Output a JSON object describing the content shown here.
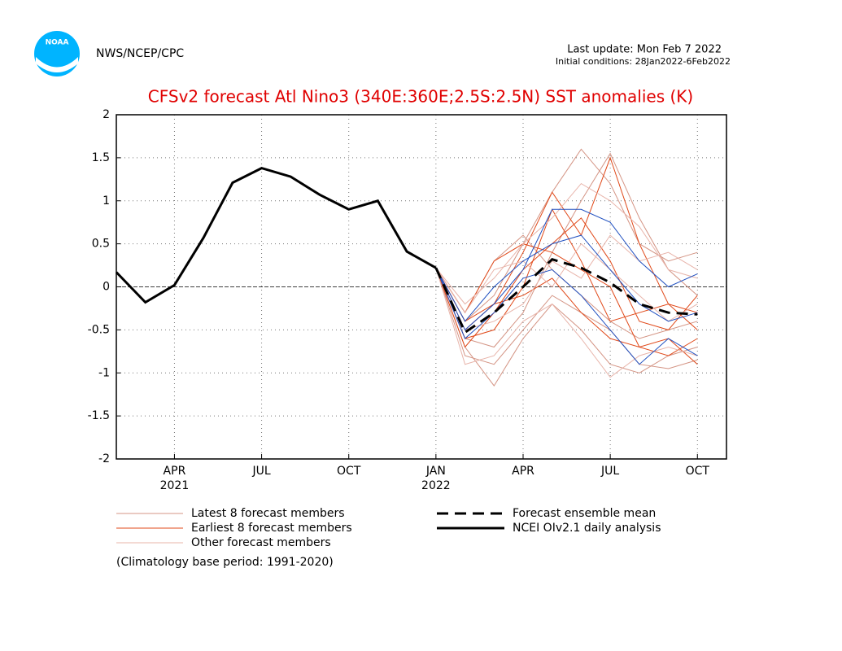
{
  "header": {
    "org": "NWS/NCEP/CPC",
    "logo_text": "NOAA",
    "last_update": "Last update: Mon Feb 7 2022",
    "initial_conditions": "Initial conditions: 28Jan2022-6Feb2022"
  },
  "chart_data": {
    "type": "line",
    "title": "CFSv2 forecast Atl Nino3 (340E:360E;2.5S:2.5N) SST anomalies (K)",
    "categories": [
      null,
      null,
      "APR 2021",
      null,
      null,
      "JUL",
      null,
      null,
      "OCT",
      null,
      null,
      "JAN 2022",
      null,
      null,
      "APR",
      null,
      null,
      "JUL",
      null,
      null,
      "OCT"
    ],
    "ylim": [
      -2,
      2
    ],
    "yticks": [
      -2,
      -1.5,
      -1,
      -0.5,
      0,
      0.5,
      1,
      1.5,
      2
    ],
    "grid": true,
    "member_groups": [
      {
        "name": "Latest 8 forecast members",
        "color": "#d49484",
        "members": [
          [
            null,
            null,
            null,
            null,
            null,
            null,
            null,
            null,
            null,
            null,
            null,
            0.22,
            -0.6,
            -0.7,
            -0.3,
            0.4,
            1.0,
            1.55,
            0.8,
            0.2,
            -0.1
          ],
          [
            null,
            null,
            null,
            null,
            null,
            null,
            null,
            null,
            null,
            null,
            null,
            0.22,
            -0.4,
            -0.1,
            0.5,
            1.1,
            1.6,
            1.2,
            0.5,
            0.3,
            0.4
          ],
          [
            null,
            null,
            null,
            null,
            null,
            null,
            null,
            null,
            null,
            null,
            null,
            0.22,
            -0.7,
            -1.15,
            -0.6,
            -0.2,
            -0.5,
            -0.9,
            -1.0,
            -0.8,
            -0.7
          ],
          [
            null,
            null,
            null,
            null,
            null,
            null,
            null,
            null,
            null,
            null,
            null,
            0.22,
            -0.3,
            0.3,
            0.6,
            0.2,
            -0.1,
            -0.4,
            -0.6,
            -0.5,
            -0.4
          ],
          [
            null,
            null,
            null,
            null,
            null,
            null,
            null,
            null,
            null,
            null,
            null,
            0.22,
            -0.8,
            -0.9,
            -0.5,
            -0.1,
            -0.3,
            -0.5,
            -0.9,
            -0.95,
            -0.85
          ]
        ]
      },
      {
        "name": "Earliest 8 forecast members",
        "color": "#e04818",
        "members": [
          [
            null,
            null,
            null,
            null,
            null,
            null,
            null,
            null,
            null,
            null,
            null,
            0.22,
            -0.5,
            -0.2,
            0.4,
            1.1,
            0.6,
            1.5,
            0.5,
            -0.2,
            -0.5
          ],
          [
            null,
            null,
            null,
            null,
            null,
            null,
            null,
            null,
            null,
            null,
            null,
            0.22,
            -0.3,
            0.3,
            0.5,
            0.4,
            0.2,
            0.0,
            -0.7,
            -0.8,
            -0.6
          ],
          [
            null,
            null,
            null,
            null,
            null,
            null,
            null,
            null,
            null,
            null,
            null,
            0.22,
            -0.6,
            -0.5,
            0.0,
            0.9,
            0.3,
            -0.4,
            -0.3,
            -0.2,
            -0.3
          ],
          [
            null,
            null,
            null,
            null,
            null,
            null,
            null,
            null,
            null,
            null,
            null,
            0.22,
            -0.4,
            -0.2,
            -0.1,
            0.1,
            -0.3,
            -0.6,
            -0.7,
            -0.6,
            -0.9
          ],
          [
            null,
            null,
            null,
            null,
            null,
            null,
            null,
            null,
            null,
            null,
            null,
            0.22,
            -0.7,
            -0.3,
            0.2,
            0.5,
            0.8,
            0.3,
            -0.4,
            -0.5,
            -0.1
          ]
        ]
      },
      {
        "name": "Other forecast members",
        "color": "#e8b4aa",
        "members": [
          [
            null,
            null,
            null,
            null,
            null,
            null,
            null,
            null,
            null,
            null,
            null,
            0.22,
            -0.2,
            0.1,
            0.5,
            0.8,
            1.2,
            1.0,
            0.7,
            0.2,
            0.1
          ],
          [
            null,
            null,
            null,
            null,
            null,
            null,
            null,
            null,
            null,
            null,
            null,
            0.22,
            -0.9,
            -0.8,
            -0.4,
            -0.2,
            -0.6,
            -1.05,
            -0.8,
            -0.7,
            -0.8
          ],
          [
            null,
            null,
            null,
            null,
            null,
            null,
            null,
            null,
            null,
            null,
            null,
            0.22,
            -0.5,
            -0.4,
            -0.2,
            0.3,
            0.1,
            0.6,
            0.3,
            0.4,
            0.2
          ],
          [
            null,
            null,
            null,
            null,
            null,
            null,
            null,
            null,
            null,
            null,
            null,
            0.22,
            -0.3,
            0.2,
            0.3,
            0.0,
            0.5,
            0.2,
            -0.1,
            -0.4,
            -0.2
          ]
        ]
      },
      {
        "color": "#2050c0",
        "members": [
          [
            null,
            null,
            null,
            null,
            null,
            null,
            null,
            null,
            null,
            null,
            null,
            0.22,
            -0.5,
            -0.2,
            0.2,
            0.9,
            0.9,
            0.75,
            0.3,
            0.0,
            0.15
          ],
          [
            null,
            null,
            null,
            null,
            null,
            null,
            null,
            null,
            null,
            null,
            null,
            0.22,
            -0.4,
            0.0,
            0.3,
            0.5,
            0.6,
            0.2,
            -0.2,
            -0.4,
            -0.3
          ],
          [
            null,
            null,
            null,
            null,
            null,
            null,
            null,
            null,
            null,
            null,
            null,
            0.22,
            -0.6,
            -0.3,
            0.1,
            0.2,
            -0.1,
            -0.5,
            -0.9,
            -0.6,
            -0.8
          ]
        ]
      }
    ],
    "series": [
      {
        "name": "Forecast ensemble mean",
        "color": "#000000",
        "dashed": true,
        "values": [
          null,
          null,
          null,
          null,
          null,
          null,
          null,
          null,
          null,
          null,
          null,
          0.22,
          -0.53,
          -0.3,
          0.0,
          0.32,
          0.22,
          0.05,
          -0.2,
          -0.3,
          -0.32
        ]
      },
      {
        "name": "NCEI OIv2.1 daily analysis",
        "color": "#000000",
        "dashed": false,
        "values": [
          0.17,
          -0.18,
          0.02,
          0.57,
          1.21,
          1.38,
          1.28,
          1.07,
          0.9,
          1.0,
          0.41,
          0.22,
          null,
          null,
          null,
          null,
          null,
          null,
          null,
          null,
          null
        ]
      }
    ],
    "note": "(Climatology base period: 1991-2020)"
  }
}
